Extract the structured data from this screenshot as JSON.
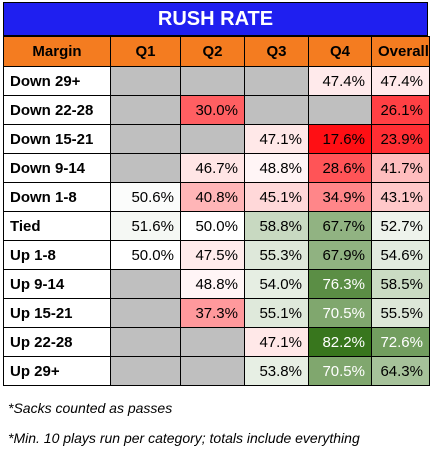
{
  "title": "RUSH RATE",
  "headers": [
    "Margin",
    "Q1",
    "Q2",
    "Q3",
    "Q4",
    "Overall"
  ],
  "rows": [
    {
      "label": "Down 29+",
      "cells": [
        null,
        null,
        null,
        "47.4%",
        "47.4%"
      ]
    },
    {
      "label": "Down 22-28",
      "cells": [
        null,
        "30.0%",
        null,
        null,
        "26.1%"
      ]
    },
    {
      "label": "Down 15-21",
      "cells": [
        null,
        null,
        "47.1%",
        "17.6%",
        "23.9%"
      ]
    },
    {
      "label": "Down 9-14",
      "cells": [
        null,
        "46.7%",
        "48.8%",
        "28.6%",
        "41.7%"
      ]
    },
    {
      "label": "Down 1-8",
      "cells": [
        "50.6%",
        "40.8%",
        "45.1%",
        "34.9%",
        "43.1%"
      ]
    },
    {
      "label": "Tied",
      "cells": [
        "51.6%",
        "50.0%",
        "58.8%",
        "67.7%",
        "52.7%"
      ]
    },
    {
      "label": "Up 1-8",
      "cells": [
        "50.0%",
        "47.5%",
        "55.3%",
        "67.9%",
        "54.6%"
      ]
    },
    {
      "label": "Up 9-14",
      "cells": [
        null,
        "48.8%",
        "54.0%",
        "76.3%",
        "58.5%"
      ]
    },
    {
      "label": "Up 15-21",
      "cells": [
        null,
        "37.3%",
        "55.1%",
        "70.5%",
        "55.5%"
      ]
    },
    {
      "label": "Up 22-28",
      "cells": [
        null,
        null,
        "47.1%",
        "82.2%",
        "72.6%"
      ]
    },
    {
      "label": "Up 29+",
      "cells": [
        null,
        null,
        "53.8%",
        "70.5%",
        "64.3%"
      ]
    }
  ],
  "colors": {
    "title_bg": "#1f1ff0",
    "header_bg": "#f47c20",
    "na_cell": "#bfbfbf"
  },
  "footnotes": [
    "*Sacks counted as passes",
    "*Min. 10 plays run per category; totals include everything"
  ]
}
